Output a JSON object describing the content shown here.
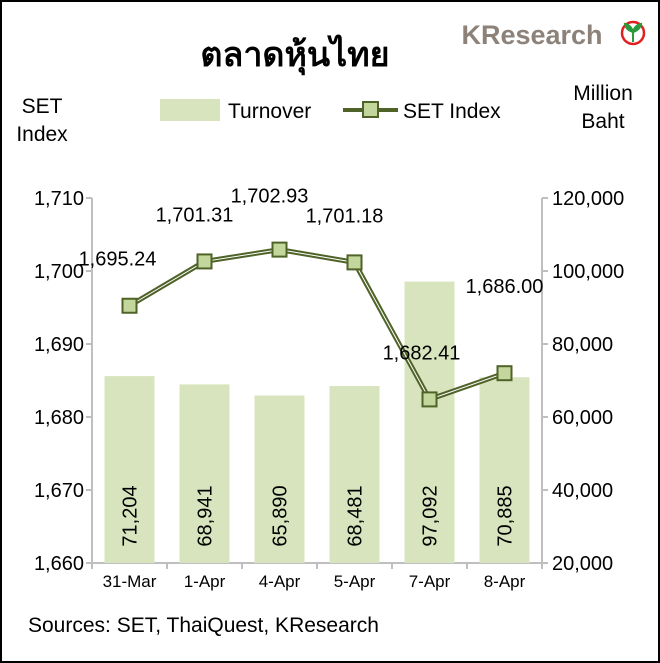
{
  "chart_data": {
    "type": "bar+line",
    "title": "ตลาดหุ้นไทย",
    "logo_text": "KResearch",
    "categories": [
      "31-Mar",
      "1-Apr",
      "4-Apr",
      "5-Apr",
      "7-Apr",
      "8-Apr"
    ],
    "series": [
      {
        "name": "Turnover",
        "type": "bar",
        "axis": "right",
        "values": [
          71204,
          68941,
          65890,
          68481,
          97092,
          70885
        ],
        "labels": [
          "71,204",
          "68,941",
          "65,890",
          "68,481",
          "97,092",
          "70,885"
        ],
        "color": "#d7e4bd"
      },
      {
        "name": "SET Index",
        "type": "line",
        "axis": "left",
        "values": [
          1695.24,
          1701.31,
          1702.93,
          1701.18,
          1682.41,
          1686.0
        ],
        "labels": [
          "1,695.24",
          "1,701.31",
          "1,702.93",
          "1,701.18",
          "1,682.41",
          "1,686.00"
        ],
        "color": "#4f6228",
        "marker_color": "#c3d69b"
      }
    ],
    "ylabel_left": [
      "SET",
      "Index"
    ],
    "ylabel_right": [
      "Million",
      "Baht"
    ],
    "ylim_left": [
      1660,
      1710
    ],
    "ylim_right": [
      20000,
      120000
    ],
    "left_ticks": [
      "1,660",
      "1,670",
      "1,680",
      "1,690",
      "1,700",
      "1,710"
    ],
    "right_ticks": [
      "20,000",
      "40,000",
      "60,000",
      "80,000",
      "100,000",
      "120,000"
    ],
    "legend_position": "top",
    "grid": false,
    "source": "Sources: SET, ThaiQuest, KResearch"
  }
}
